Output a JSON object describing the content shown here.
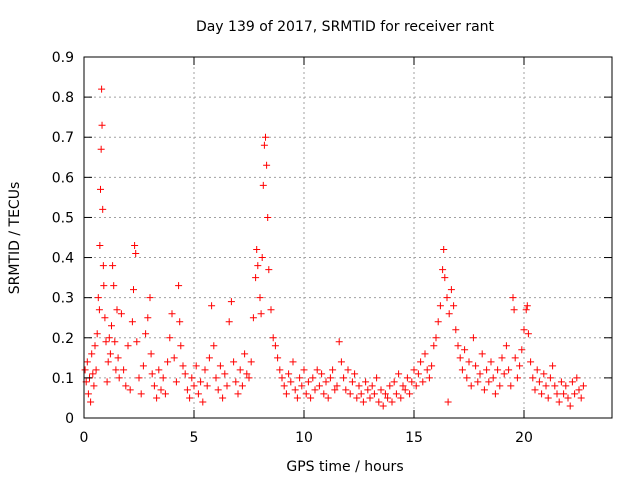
{
  "chart_data": {
    "type": "scatter",
    "title": "Day 139 of 2017, SRMTID for receiver rant",
    "xlabel": "GPS time / hours",
    "ylabel": "SRMTID / TECUs",
    "xlim": [
      0,
      24
    ],
    "ylim": [
      0,
      0.9
    ],
    "xticks": [
      0,
      5,
      10,
      15,
      20
    ],
    "xtick_labels": [
      "0",
      "5",
      "10",
      "15",
      "20"
    ],
    "yticks": [
      0,
      0.1,
      0.2,
      0.3,
      0.4,
      0.5,
      0.6,
      0.7,
      0.8,
      0.9
    ],
    "ytick_labels": [
      "0",
      "0.1",
      "0.2",
      "0.3",
      "0.4",
      "0.5",
      "0.6",
      "0.7",
      "0.8",
      "0.9"
    ],
    "grid": true,
    "marker": "plus",
    "marker_color": "#ff0000",
    "series": [
      {
        "name": "SRMTID",
        "points": [
          [
            0.05,
            0.12
          ],
          [
            0.1,
            0.09
          ],
          [
            0.15,
            0.14
          ],
          [
            0.2,
            0.06
          ],
          [
            0.25,
            0.1
          ],
          [
            0.3,
            0.04
          ],
          [
            0.35,
            0.16
          ],
          [
            0.4,
            0.11
          ],
          [
            0.45,
            0.08
          ],
          [
            0.5,
            0.18
          ],
          [
            0.55,
            0.12
          ],
          [
            0.6,
            0.21
          ],
          [
            0.65,
            0.3
          ],
          [
            0.7,
            0.27
          ],
          [
            0.72,
            0.43
          ],
          [
            0.75,
            0.57
          ],
          [
            0.78,
            0.67
          ],
          [
            0.8,
            0.82
          ],
          [
            0.82,
            0.73
          ],
          [
            0.85,
            0.52
          ],
          [
            0.88,
            0.38
          ],
          [
            0.9,
            0.33
          ],
          [
            0.95,
            0.25
          ],
          [
            1.0,
            0.19
          ],
          [
            1.05,
            0.09
          ],
          [
            1.1,
            0.14
          ],
          [
            1.15,
            0.2
          ],
          [
            1.2,
            0.16
          ],
          [
            1.25,
            0.23
          ],
          [
            1.3,
            0.38
          ],
          [
            1.35,
            0.33
          ],
          [
            1.4,
            0.19
          ],
          [
            1.45,
            0.12
          ],
          [
            1.5,
            0.27
          ],
          [
            1.55,
            0.15
          ],
          [
            1.6,
            0.1
          ],
          [
            1.7,
            0.26
          ],
          [
            1.8,
            0.12
          ],
          [
            1.9,
            0.08
          ],
          [
            2.0,
            0.18
          ],
          [
            2.1,
            0.07
          ],
          [
            2.2,
            0.24
          ],
          [
            2.25,
            0.32
          ],
          [
            2.3,
            0.43
          ],
          [
            2.35,
            0.41
          ],
          [
            2.4,
            0.19
          ],
          [
            2.5,
            0.1
          ],
          [
            2.6,
            0.06
          ],
          [
            2.7,
            0.13
          ],
          [
            2.8,
            0.21
          ],
          [
            2.9,
            0.25
          ],
          [
            3.0,
            0.3
          ],
          [
            3.05,
            0.16
          ],
          [
            3.1,
            0.11
          ],
          [
            3.2,
            0.08
          ],
          [
            3.3,
            0.05
          ],
          [
            3.4,
            0.12
          ],
          [
            3.5,
            0.07
          ],
          [
            3.6,
            0.1
          ],
          [
            3.7,
            0.06
          ],
          [
            3.8,
            0.14
          ],
          [
            3.9,
            0.2
          ],
          [
            4.0,
            0.26
          ],
          [
            4.1,
            0.15
          ],
          [
            4.2,
            0.09
          ],
          [
            4.3,
            0.33
          ],
          [
            4.35,
            0.24
          ],
          [
            4.4,
            0.18
          ],
          [
            4.5,
            0.13
          ],
          [
            4.6,
            0.11
          ],
          [
            4.7,
            0.07
          ],
          [
            4.8,
            0.05
          ],
          [
            4.9,
            0.1
          ],
          [
            5.0,
            0.08
          ],
          [
            5.1,
            0.13
          ],
          [
            5.2,
            0.06
          ],
          [
            5.3,
            0.09
          ],
          [
            5.4,
            0.04
          ],
          [
            5.5,
            0.12
          ],
          [
            5.6,
            0.08
          ],
          [
            5.7,
            0.15
          ],
          [
            5.8,
            0.28
          ],
          [
            5.9,
            0.18
          ],
          [
            6.0,
            0.1
          ],
          [
            6.1,
            0.07
          ],
          [
            6.2,
            0.13
          ],
          [
            6.3,
            0.05
          ],
          [
            6.4,
            0.11
          ],
          [
            6.5,
            0.08
          ],
          [
            6.6,
            0.24
          ],
          [
            6.7,
            0.29
          ],
          [
            6.8,
            0.14
          ],
          [
            6.9,
            0.09
          ],
          [
            7.0,
            0.06
          ],
          [
            7.1,
            0.12
          ],
          [
            7.2,
            0.08
          ],
          [
            7.3,
            0.16
          ],
          [
            7.4,
            0.11
          ],
          [
            7.5,
            0.1
          ],
          [
            7.6,
            0.14
          ],
          [
            7.7,
            0.25
          ],
          [
            7.8,
            0.35
          ],
          [
            7.85,
            0.42
          ],
          [
            7.9,
            0.38
          ],
          [
            8.0,
            0.3
          ],
          [
            8.05,
            0.26
          ],
          [
            8.1,
            0.4
          ],
          [
            8.15,
            0.58
          ],
          [
            8.2,
            0.68
          ],
          [
            8.25,
            0.7
          ],
          [
            8.3,
            0.63
          ],
          [
            8.35,
            0.5
          ],
          [
            8.4,
            0.37
          ],
          [
            8.5,
            0.27
          ],
          [
            8.6,
            0.2
          ],
          [
            8.7,
            0.18
          ],
          [
            8.8,
            0.15
          ],
          [
            8.9,
            0.12
          ],
          [
            9.0,
            0.1
          ],
          [
            9.1,
            0.08
          ],
          [
            9.2,
            0.06
          ],
          [
            9.3,
            0.11
          ],
          [
            9.4,
            0.09
          ],
          [
            9.5,
            0.14
          ],
          [
            9.6,
            0.07
          ],
          [
            9.7,
            0.05
          ],
          [
            9.8,
            0.1
          ],
          [
            9.9,
            0.08
          ],
          [
            10.0,
            0.12
          ],
          [
            10.1,
            0.06
          ],
          [
            10.2,
            0.09
          ],
          [
            10.3,
            0.05
          ],
          [
            10.4,
            0.1
          ],
          [
            10.5,
            0.07
          ],
          [
            10.6,
            0.12
          ],
          [
            10.7,
            0.08
          ],
          [
            10.8,
            0.11
          ],
          [
            10.9,
            0.06
          ],
          [
            11.0,
            0.09
          ],
          [
            11.1,
            0.05
          ],
          [
            11.2,
            0.1
          ],
          [
            11.3,
            0.12
          ],
          [
            11.4,
            0.07
          ],
          [
            11.5,
            0.08
          ],
          [
            11.6,
            0.19
          ],
          [
            11.7,
            0.14
          ],
          [
            11.8,
            0.1
          ],
          [
            11.9,
            0.07
          ],
          [
            12.0,
            0.12
          ],
          [
            12.1,
            0.06
          ],
          [
            12.2,
            0.09
          ],
          [
            12.3,
            0.11
          ],
          [
            12.4,
            0.05
          ],
          [
            12.5,
            0.08
          ],
          [
            12.6,
            0.06
          ],
          [
            12.7,
            0.04
          ],
          [
            12.8,
            0.09
          ],
          [
            12.9,
            0.07
          ],
          [
            13.0,
            0.05
          ],
          [
            13.1,
            0.08
          ],
          [
            13.2,
            0.06
          ],
          [
            13.3,
            0.1
          ],
          [
            13.4,
            0.04
          ],
          [
            13.5,
            0.07
          ],
          [
            13.6,
            0.03
          ],
          [
            13.7,
            0.06
          ],
          [
            13.8,
            0.05
          ],
          [
            13.9,
            0.08
          ],
          [
            14.0,
            0.04
          ],
          [
            14.1,
            0.09
          ],
          [
            14.2,
            0.06
          ],
          [
            14.3,
            0.11
          ],
          [
            14.4,
            0.05
          ],
          [
            14.5,
            0.08
          ],
          [
            14.6,
            0.07
          ],
          [
            14.7,
            0.1
          ],
          [
            14.8,
            0.06
          ],
          [
            14.9,
            0.09
          ],
          [
            15.0,
            0.12
          ],
          [
            15.1,
            0.08
          ],
          [
            15.2,
            0.11
          ],
          [
            15.3,
            0.14
          ],
          [
            15.4,
            0.09
          ],
          [
            15.5,
            0.16
          ],
          [
            15.6,
            0.12
          ],
          [
            15.7,
            0.1
          ],
          [
            15.8,
            0.13
          ],
          [
            15.9,
            0.18
          ],
          [
            16.0,
            0.2
          ],
          [
            16.1,
            0.24
          ],
          [
            16.2,
            0.28
          ],
          [
            16.3,
            0.37
          ],
          [
            16.35,
            0.42
          ],
          [
            16.4,
            0.35
          ],
          [
            16.5,
            0.3
          ],
          [
            16.55,
            0.04
          ],
          [
            16.6,
            0.26
          ],
          [
            16.7,
            0.32
          ],
          [
            16.8,
            0.28
          ],
          [
            16.9,
            0.22
          ],
          [
            17.0,
            0.18
          ],
          [
            17.1,
            0.15
          ],
          [
            17.2,
            0.12
          ],
          [
            17.3,
            0.17
          ],
          [
            17.4,
            0.1
          ],
          [
            17.5,
            0.14
          ],
          [
            17.6,
            0.08
          ],
          [
            17.7,
            0.2
          ],
          [
            17.8,
            0.13
          ],
          [
            17.9,
            0.09
          ],
          [
            18.0,
            0.11
          ],
          [
            18.1,
            0.16
          ],
          [
            18.2,
            0.07
          ],
          [
            18.3,
            0.12
          ],
          [
            18.4,
            0.09
          ],
          [
            18.5,
            0.14
          ],
          [
            18.6,
            0.1
          ],
          [
            18.7,
            0.06
          ],
          [
            18.8,
            0.12
          ],
          [
            18.9,
            0.08
          ],
          [
            19.0,
            0.15
          ],
          [
            19.1,
            0.11
          ],
          [
            19.2,
            0.18
          ],
          [
            19.3,
            0.12
          ],
          [
            19.4,
            0.08
          ],
          [
            19.5,
            0.3
          ],
          [
            19.55,
            0.27
          ],
          [
            19.6,
            0.15
          ],
          [
            19.7,
            0.1
          ],
          [
            19.8,
            0.13
          ],
          [
            19.9,
            0.17
          ],
          [
            20.0,
            0.22
          ],
          [
            20.1,
            0.27
          ],
          [
            20.15,
            0.28
          ],
          [
            20.2,
            0.21
          ],
          [
            20.3,
            0.14
          ],
          [
            20.4,
            0.1
          ],
          [
            20.5,
            0.07
          ],
          [
            20.6,
            0.12
          ],
          [
            20.7,
            0.09
          ],
          [
            20.8,
            0.06
          ],
          [
            20.9,
            0.11
          ],
          [
            21.0,
            0.08
          ],
          [
            21.1,
            0.05
          ],
          [
            21.2,
            0.1
          ],
          [
            21.3,
            0.13
          ],
          [
            21.4,
            0.08
          ],
          [
            21.5,
            0.06
          ],
          [
            21.6,
            0.04
          ],
          [
            21.7,
            0.09
          ],
          [
            21.8,
            0.06
          ],
          [
            21.9,
            0.08
          ],
          [
            22.0,
            0.05
          ],
          [
            22.1,
            0.03
          ],
          [
            22.2,
            0.09
          ],
          [
            22.3,
            0.06
          ],
          [
            22.4,
            0.1
          ],
          [
            22.5,
            0.07
          ],
          [
            22.6,
            0.05
          ],
          [
            22.7,
            0.08
          ]
        ]
      }
    ]
  }
}
